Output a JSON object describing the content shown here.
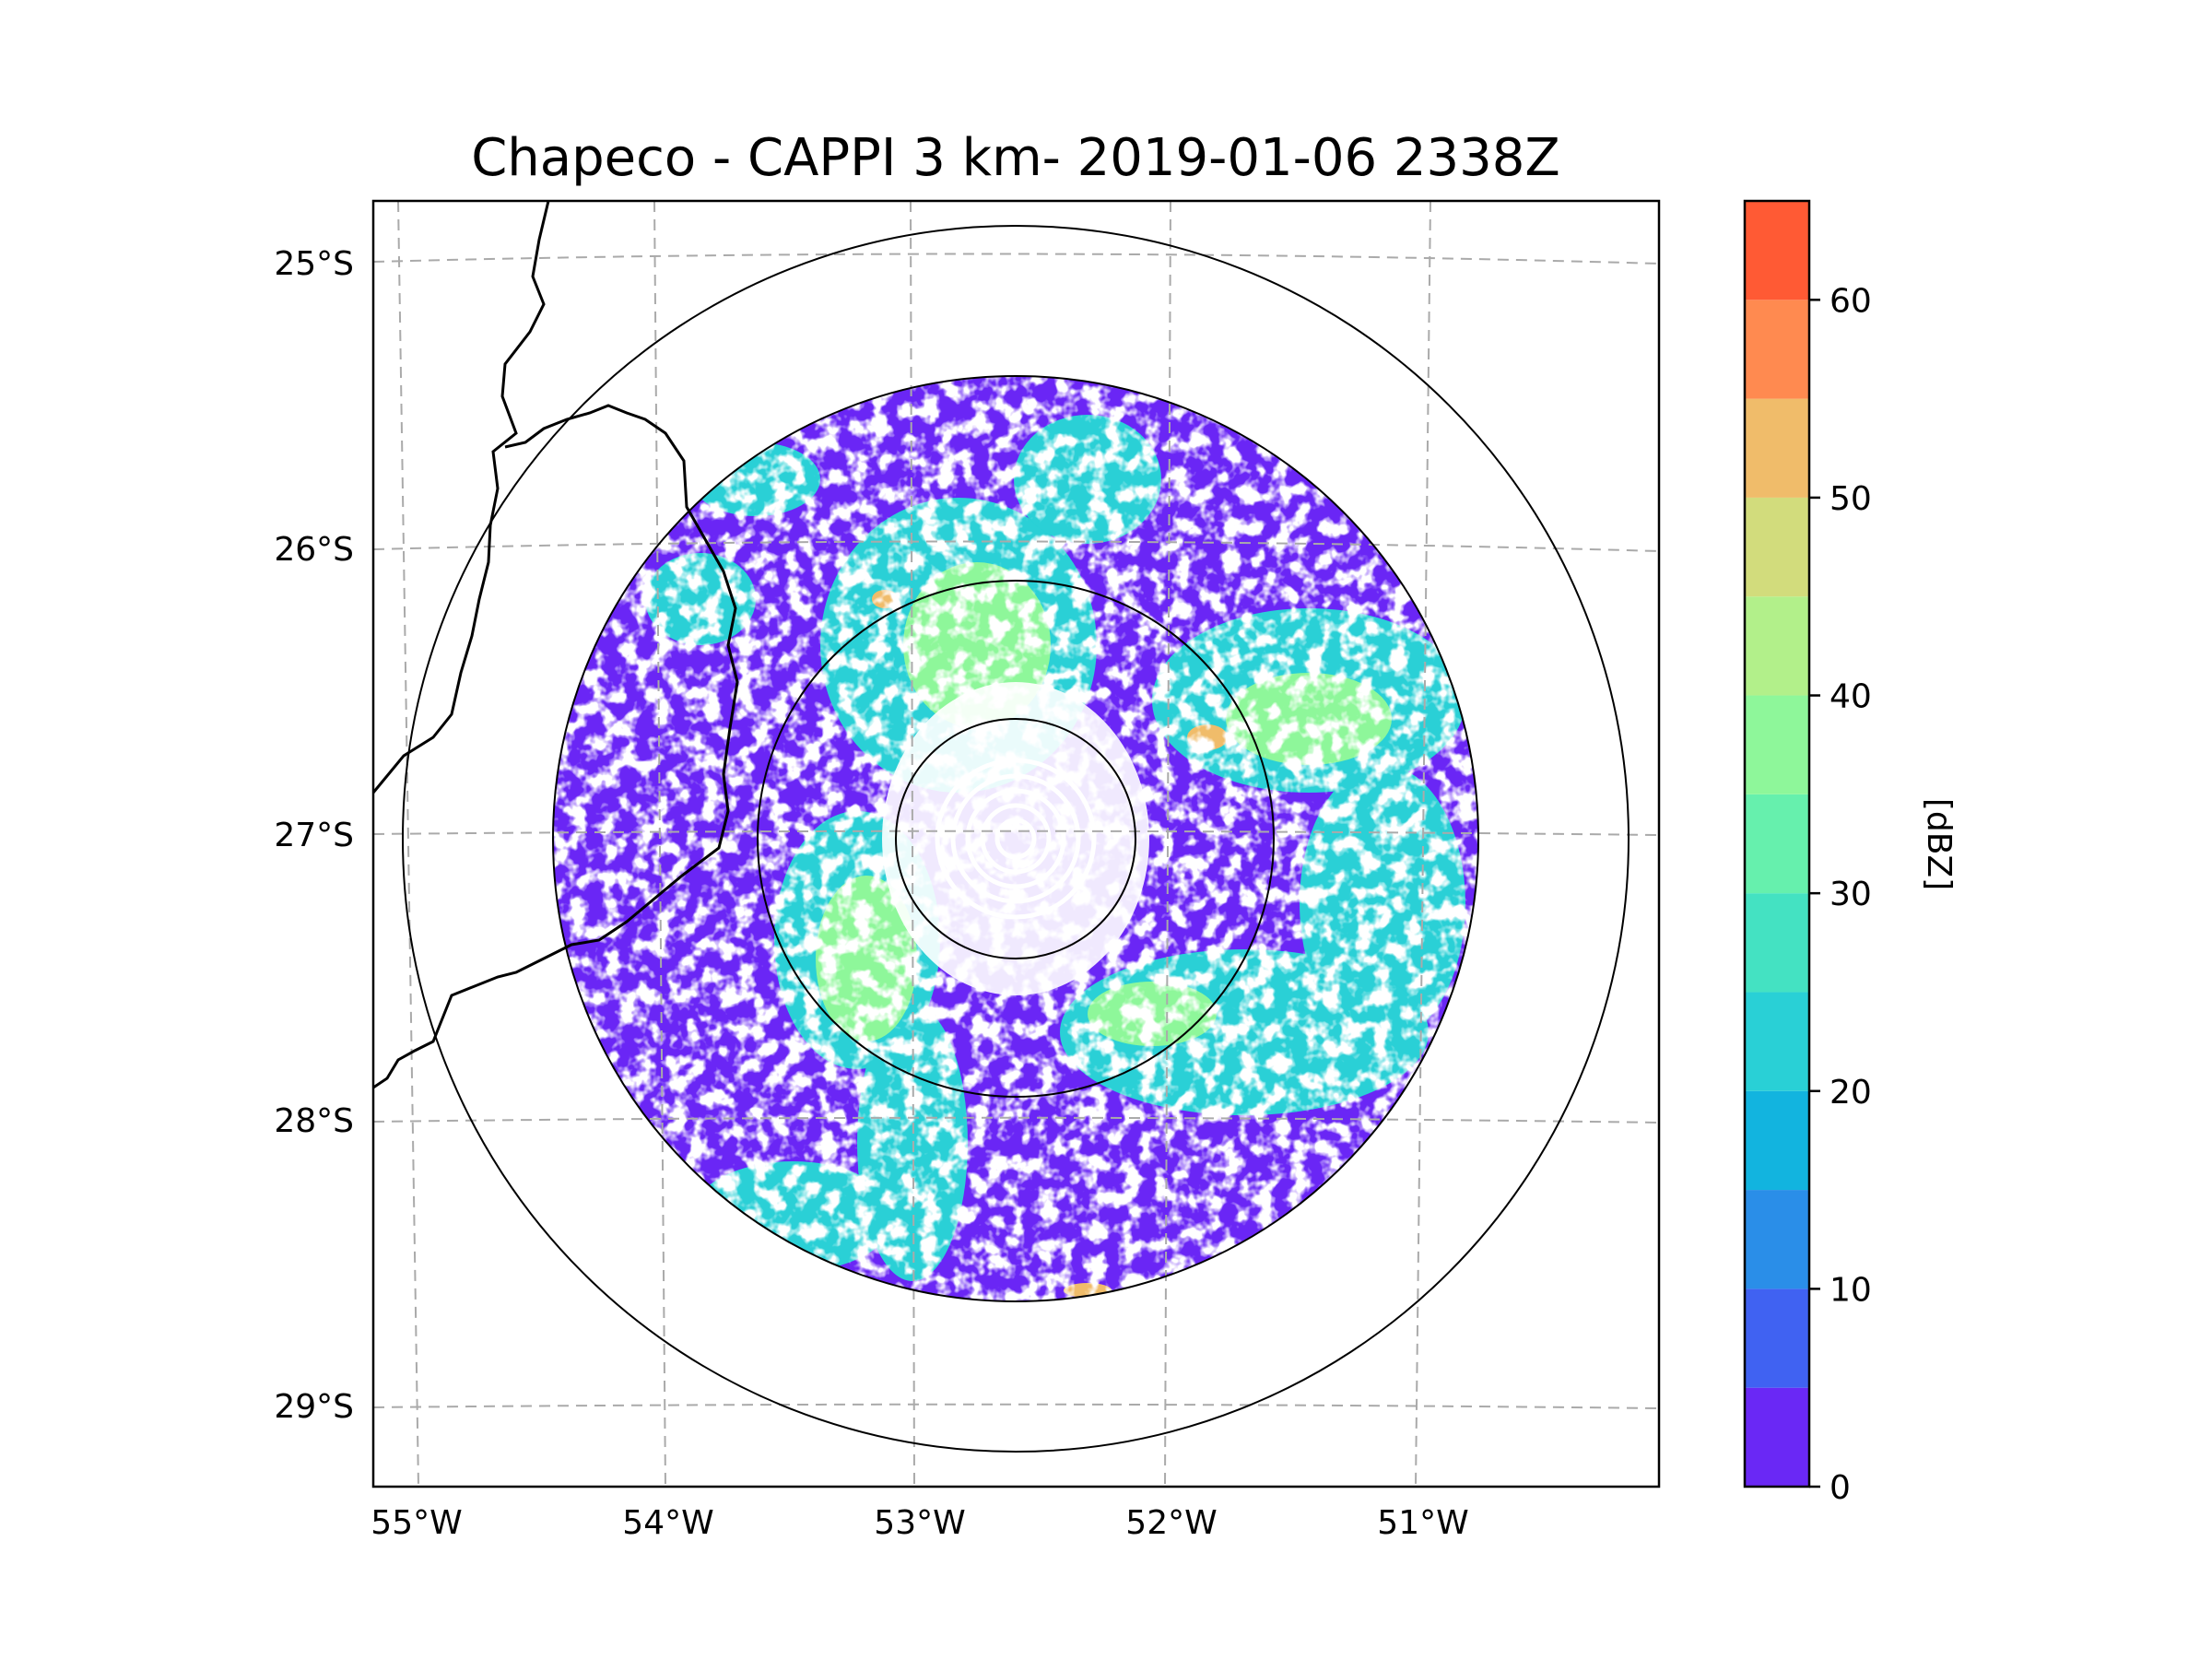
{
  "figure": {
    "title": "Chapeco - CAPPI 3 km- 2019-01-06 2338Z"
  },
  "map": {
    "lon_ticks": [
      "55°W",
      "54°W",
      "53°W",
      "52°W",
      "51°W"
    ],
    "lat_ticks": [
      "25°S",
      "26°S",
      "27°S",
      "28°S",
      "29°S"
    ],
    "lon_values": [
      -55,
      -54,
      -53,
      -52,
      -51
    ],
    "lat_values": [
      -25,
      -26,
      -27,
      -28,
      -29
    ],
    "radar_center": {
      "lon": -52.6,
      "lat": -27.0
    }
  },
  "colorbar": {
    "label": "[dBZ]",
    "tick_labels": [
      "0",
      "10",
      "20",
      "30",
      "40",
      "50",
      "60"
    ],
    "levels": [
      0,
      5,
      10,
      15,
      20,
      25,
      30,
      35,
      40,
      45,
      50,
      55,
      60,
      65
    ],
    "colors": [
      "#6a28f5",
      "#4062f2",
      "#2a8ee8",
      "#12b4df",
      "#29d0d6",
      "#44e2c2",
      "#66f0ad",
      "#8ef79a",
      "#b2f08a",
      "#d2dc7c",
      "#f0bc6a",
      "#ff8a50",
      "#ff5a34",
      "#ff2414"
    ]
  },
  "palette": {
    "grid": "#aaaaaa",
    "coast": "#000000",
    "range_ring": "#000000",
    "echo_weak": "#6a28f5",
    "echo_mid": "#29d0d6",
    "echo_strong": "#8ef79a",
    "echo_core": "#f0bc6a"
  }
}
